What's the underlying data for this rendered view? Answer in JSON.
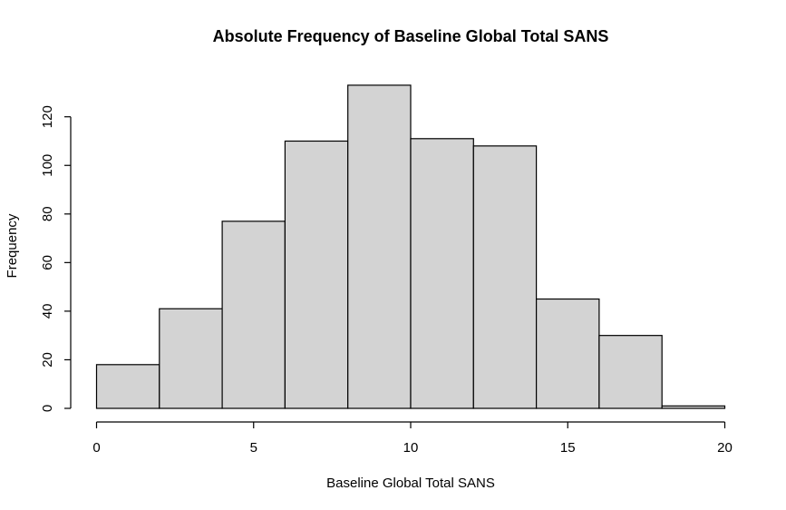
{
  "chart_data": {
    "type": "bar",
    "title": "Absolute Frequency of Baseline Global Total SANS",
    "xlabel": "Baseline Global Total SANS",
    "ylabel": "Frequency",
    "bin_edges": [
      0,
      2,
      4,
      6,
      8,
      10,
      12,
      14,
      16,
      18,
      20
    ],
    "values": [
      18,
      41,
      77,
      110,
      133,
      111,
      108,
      45,
      30,
      1
    ],
    "xlim": [
      0,
      20
    ],
    "ylim": [
      0,
      135
    ],
    "x_ticks": [
      0,
      5,
      10,
      15,
      20
    ],
    "y_ticks": [
      0,
      20,
      40,
      60,
      80,
      100,
      120
    ],
    "grid": false,
    "colors": {
      "bar_fill": "#d3d3d3",
      "bar_stroke": "#000000"
    }
  }
}
